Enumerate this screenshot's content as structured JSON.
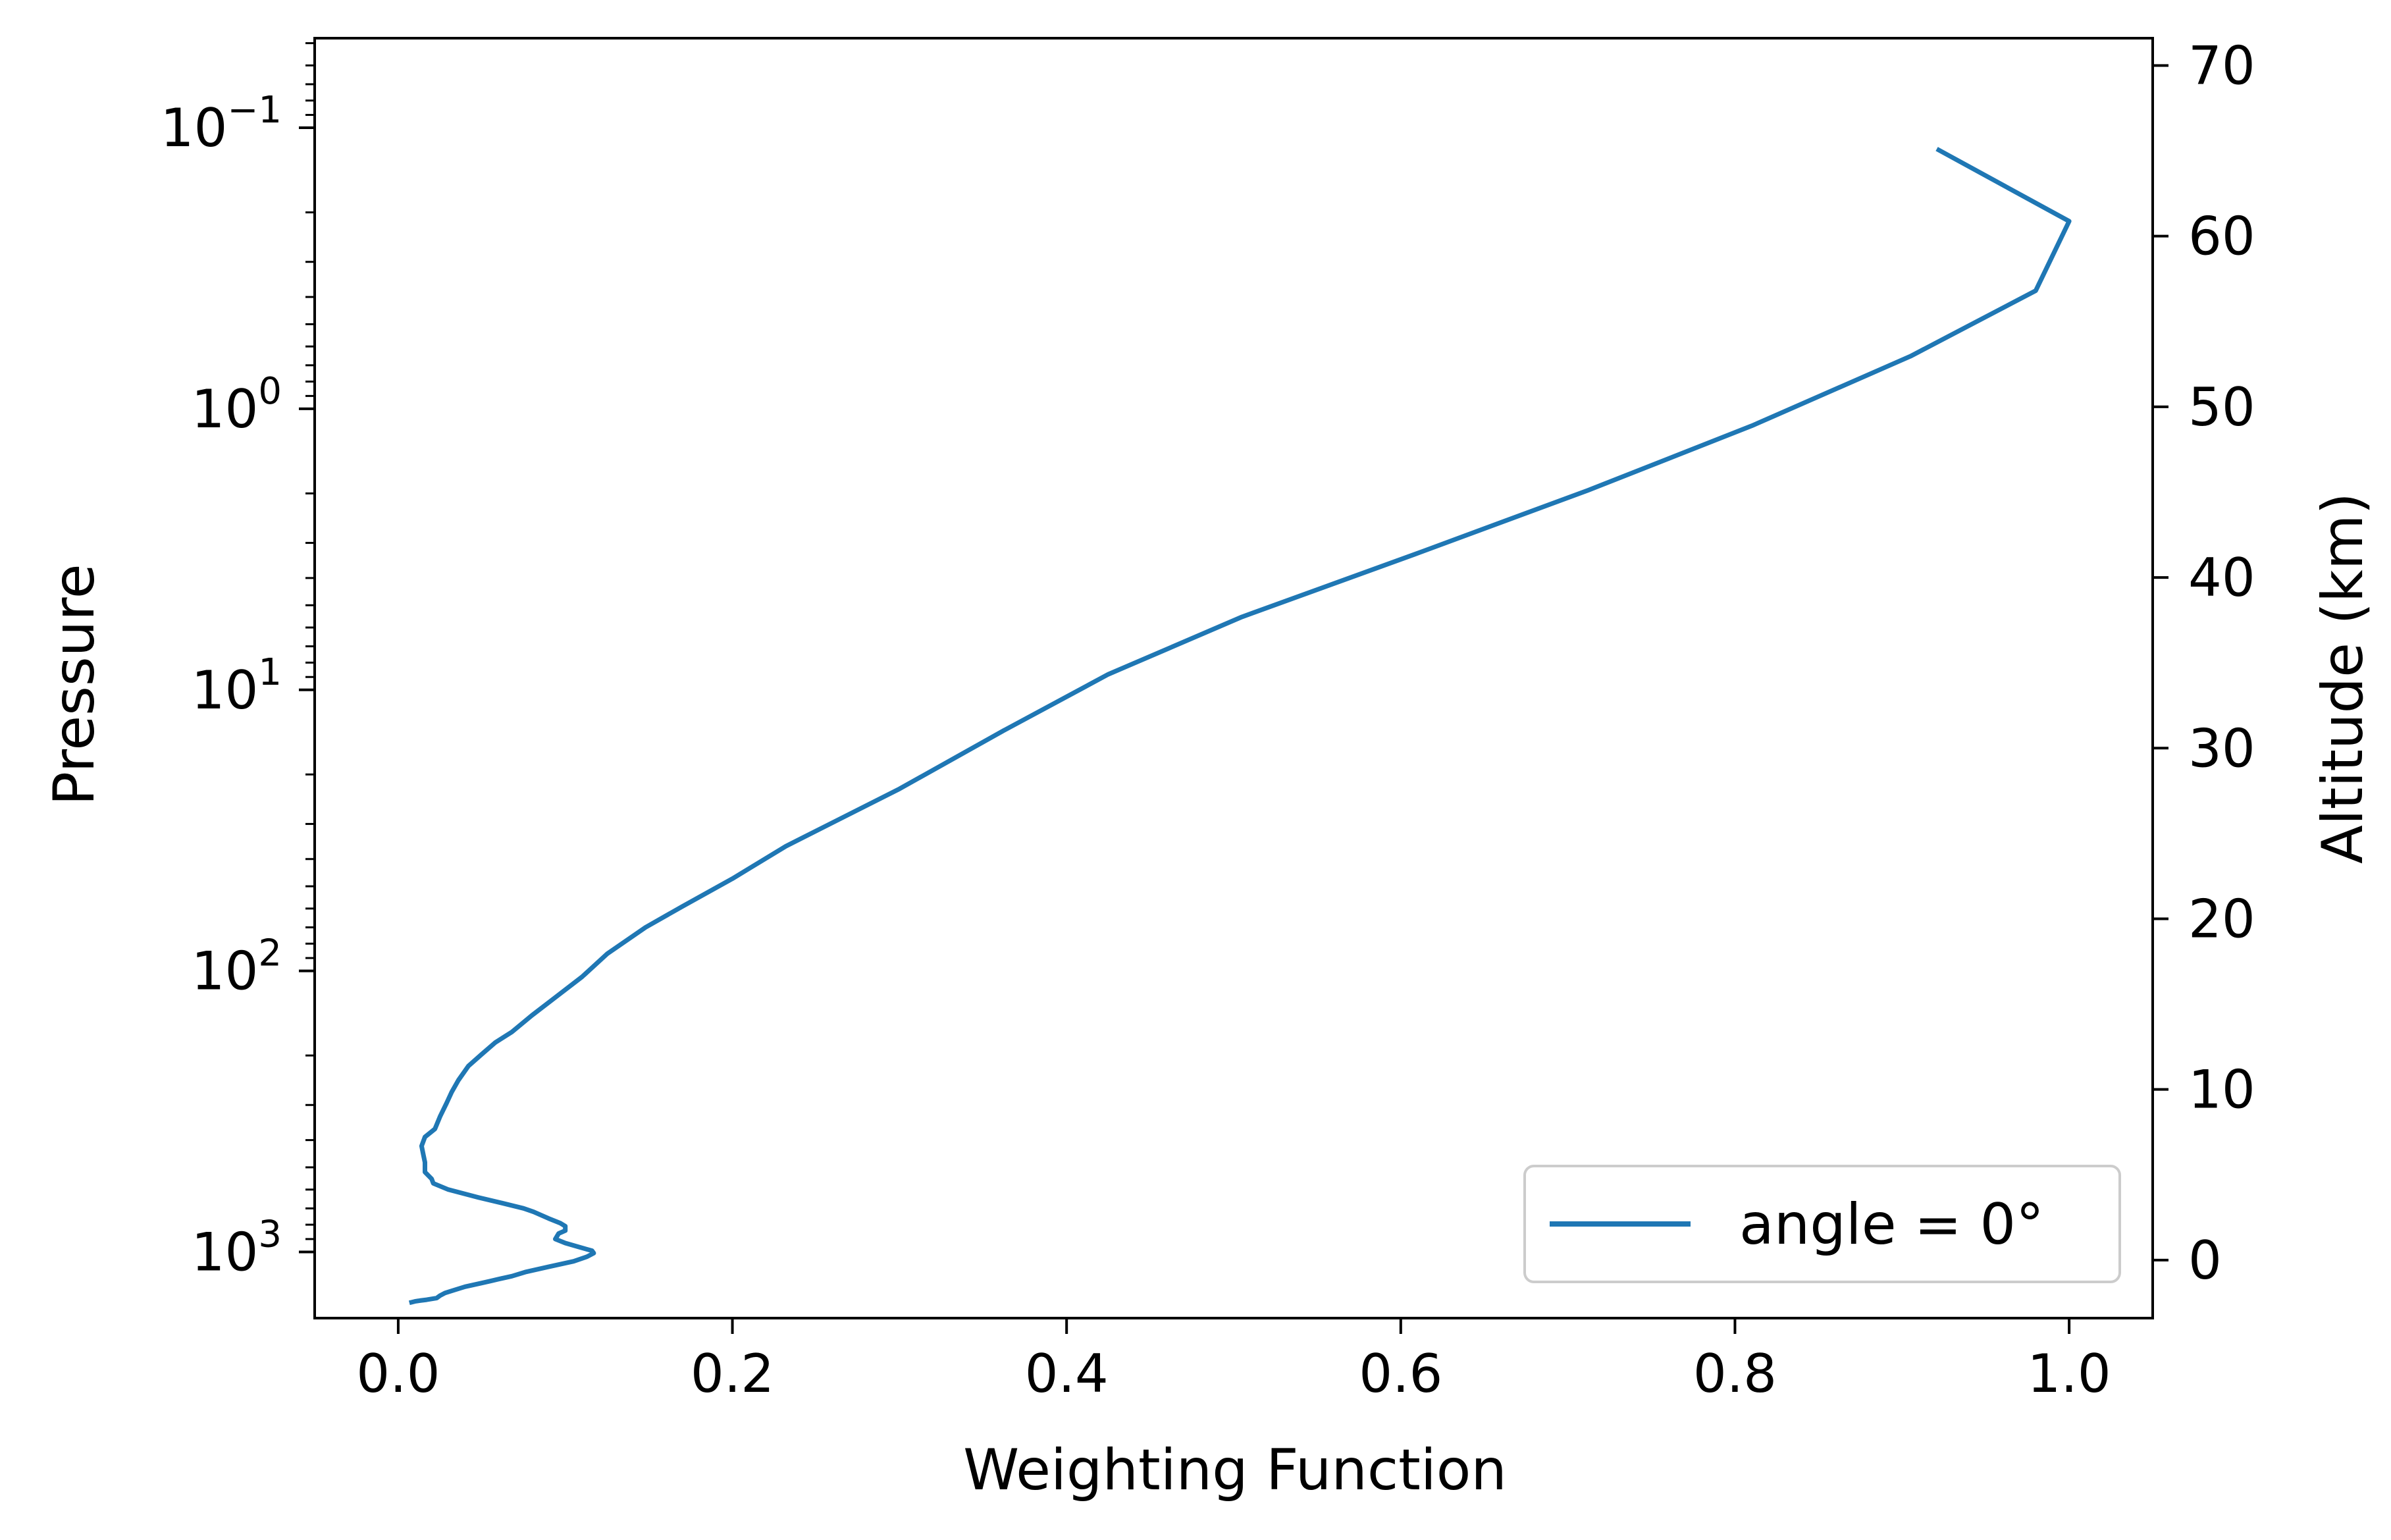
{
  "chart_data": {
    "type": "line",
    "title": "",
    "xlabel": "Weighting Function",
    "ylabel": "Pressure",
    "ylabel_right": "Altitude (km)",
    "xlim": [
      -0.05,
      1.05
    ],
    "ylim_pressure": [
      1720,
      0.048
    ],
    "yscale": "log",
    "ylim_altitude": [
      -3.4,
      71.6
    ],
    "grid": false,
    "legend_position": "lower right",
    "x_ticks": [
      {
        "value": 0.0,
        "label": "0.0"
      },
      {
        "value": 0.2,
        "label": "0.2"
      },
      {
        "value": 0.4,
        "label": "0.4"
      },
      {
        "value": 0.6,
        "label": "0.6"
      },
      {
        "value": 0.8,
        "label": "0.8"
      },
      {
        "value": 1.0,
        "label": "1.0"
      }
    ],
    "y_ticks_left": [
      {
        "value": 0.1,
        "base": "10",
        "exp": "−1"
      },
      {
        "value": 1,
        "base": "10",
        "exp": "0"
      },
      {
        "value": 10,
        "base": "10",
        "exp": "1"
      },
      {
        "value": 100,
        "base": "10",
        "exp": "2"
      },
      {
        "value": 1000,
        "base": "10",
        "exp": "3"
      }
    ],
    "y_ticks_right": [
      {
        "value": 0,
        "label": "0"
      },
      {
        "value": 10,
        "label": "10"
      },
      {
        "value": 20,
        "label": "20"
      },
      {
        "value": 30,
        "label": "30"
      },
      {
        "value": 40,
        "label": "40"
      },
      {
        "value": 50,
        "label": "50"
      },
      {
        "value": 60,
        "label": "60"
      },
      {
        "value": 70,
        "label": "70"
      }
    ],
    "series": [
      {
        "name": "angle = 0°",
        "color": "#1f77b4",
        "x": [
          0.922,
          1.0,
          0.98,
          0.905,
          0.81,
          0.712,
          0.608,
          0.505,
          0.425,
          0.362,
          0.3,
          0.232,
          0.2,
          0.17,
          0.148,
          0.125,
          0.11,
          0.095,
          0.08,
          0.068,
          0.058,
          0.05,
          0.042,
          0.036,
          0.032,
          0.029,
          0.025,
          0.022,
          0.016,
          0.014,
          0.015,
          0.016,
          0.016,
          0.02,
          0.021,
          0.03,
          0.048,
          0.062,
          0.075,
          0.081,
          0.09,
          0.097,
          0.1,
          0.1,
          0.096,
          0.094,
          0.1,
          0.108,
          0.116,
          0.117,
          0.113,
          0.105,
          0.09,
          0.076,
          0.068,
          0.06,
          0.055,
          0.05,
          0.04,
          0.033,
          0.028,
          0.025,
          0.023,
          0.017,
          0.013,
          0.01,
          0.008
        ],
        "pressure": [
          0.12,
          0.215,
          0.38,
          0.65,
          1.15,
          1.95,
          3.3,
          5.5,
          8.8,
          14.0,
          22.5,
          36.0,
          47.0,
          59.0,
          70.0,
          87.0,
          105.0,
          123.0,
          144.0,
          165.0,
          180.0,
          198.0,
          218.0,
          245.0,
          270.0,
          295.0,
          330.0,
          365.0,
          390.0,
          420.0,
          450.0,
          480.0,
          520.0,
          550.0,
          570.0,
          600.0,
          640.0,
          670.0,
          700.0,
          720.0,
          760.0,
          790.0,
          810.0,
          840.0,
          860.0,
          900.0,
          930.0,
          960.0,
          990.0,
          1010.0,
          1040.0,
          1080.0,
          1130.0,
          1180.0,
          1220.0,
          1250.0,
          1270.0,
          1290.0,
          1330.0,
          1370.0,
          1400.0,
          1430.0,
          1460.0,
          1480.0,
          1490.0,
          1500.0,
          1510.0
        ]
      }
    ]
  }
}
